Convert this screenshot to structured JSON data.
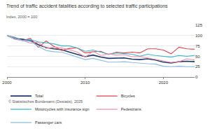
{
  "chart_data": {
    "type": "line",
    "title": "Trend of traffic accident fatalities according to selected traffic participations",
    "subtitle": "Index, 2000 = 100",
    "annotations": [
      "© Statistisches Bundesamt (Destatis), 2025"
    ],
    "x": [
      2000,
      2001,
      2002,
      2003,
      2004,
      2005,
      2006,
      2007,
      2008,
      2009,
      2010,
      2011,
      2012,
      2013,
      2014,
      2015,
      2016,
      2017,
      2018,
      2019,
      2020,
      2021,
      2022,
      2023,
      2024
    ],
    "series": [
      {
        "name": "Total",
        "color": "#1f3a68",
        "values": [
          100,
          93,
          91,
          88,
          78,
          71,
          68,
          66,
          60,
          55,
          49,
          53,
          48,
          45,
          45,
          46,
          43,
          42,
          44,
          41,
          36,
          34,
          37,
          38,
          37
        ]
      },
      {
        "name": "Bicycles",
        "color": "#e0464e",
        "values": [
          100,
          96,
          88,
          93,
          72,
          87,
          74,
          64,
          69,
          70,
          58,
          61,
          62,
          54,
          60,
          58,
          60,
          58,
          68,
          68,
          65,
          56,
          72,
          68,
          67
        ]
      },
      {
        "name": "Motorcycles with insurance sign",
        "color": "#3fb6d3",
        "values": [
          100,
          95,
          88,
          90,
          85,
          83,
          80,
          75,
          75,
          70,
          62,
          65,
          60,
          55,
          58,
          57,
          55,
          50,
          55,
          52,
          50,
          48,
          52,
          50,
          52
        ]
      },
      {
        "name": "Pedestrians",
        "color": "#f28fa6",
        "values": [
          100,
          91,
          88,
          82,
          84,
          69,
          72,
          70,
          66,
          60,
          48,
          62,
          52,
          56,
          53,
          54,
          49,
          49,
          46,
          42,
          38,
          35,
          37,
          44,
          41
        ]
      },
      {
        "name": "Passenger cars",
        "color": "#8bbbe6",
        "values": [
          100,
          92,
          88,
          86,
          74,
          64,
          61,
          60,
          54,
          48,
          42,
          45,
          41,
          36,
          36,
          37,
          35,
          33,
          32,
          31,
          26,
          25,
          26,
          25,
          25
        ]
      }
    ],
    "xlim": [
      2000,
      2024
    ],
    "xticks": [
      2000,
      2010,
      2020
    ],
    "ylim": [
      0,
      125
    ],
    "yticks": [
      0,
      25,
      50,
      75,
      100,
      125
    ],
    "grid": true,
    "legend": "bottom"
  }
}
